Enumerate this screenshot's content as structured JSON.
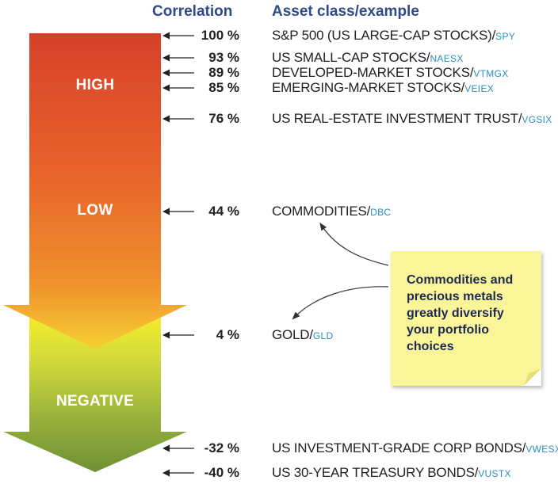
{
  "headers": {
    "correlation": "Correlation",
    "asset_class": "Asset class/example"
  },
  "bands": {
    "high": "HIGH",
    "low": "LOW",
    "negative": "NEGATIVE"
  },
  "rows": [
    {
      "pct": "100 %",
      "asset": "S&P 500 (US LARGE-CAP STOCKS)/",
      "ticker": "SPY"
    },
    {
      "pct": "93 %",
      "asset": "US SMALL-CAP STOCKS/",
      "ticker": "NAESX"
    },
    {
      "pct": "89 %",
      "asset": "DEVELOPED-MARKET STOCKS/",
      "ticker": "VTMGX"
    },
    {
      "pct": "85 %",
      "asset": "EMERGING-MARKET STOCKS/",
      "ticker": "VEIEX"
    },
    {
      "pct": "76 %",
      "asset": "US REAL-ESTATE INVESTMENT TRUST/",
      "ticker": "VGSIX"
    },
    {
      "pct": "44 %",
      "asset": "COMMODITIES/",
      "ticker": "DBC"
    },
    {
      "pct": "4 %",
      "asset": "GOLD/",
      "ticker": "GLD"
    },
    {
      "pct": "-32 %",
      "asset": "US INVESTMENT-GRADE CORP BONDS/",
      "ticker": "VWESX"
    },
    {
      "pct": "-40 %",
      "asset": "US 30-YEAR TREASURY BONDS/",
      "ticker": "VUSTX"
    }
  ],
  "note": {
    "lines": [
      "Commodities and",
      "precious metals",
      "greatly diversify",
      "your portfolio",
      "choices"
    ]
  },
  "colors": {
    "header_blue": "#2e4a8b",
    "ticker_blue": "#2a8fc0",
    "arrow_top_red": "#d6402a",
    "arrow_mid_orange": "#ef8c2b",
    "arrow_yellow": "#f4ec2e",
    "arrow_bottom_green": "#7a9a38",
    "note_yellow": "#fbf59a"
  }
}
